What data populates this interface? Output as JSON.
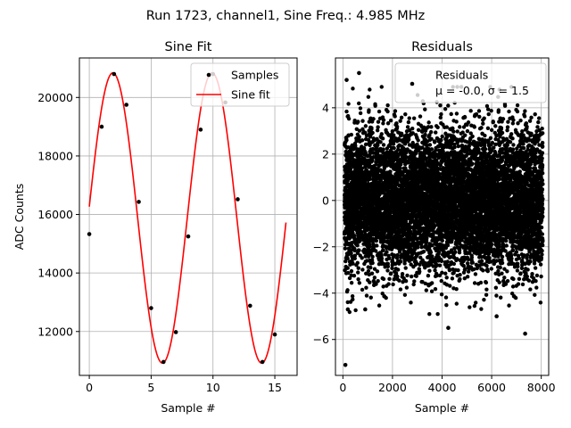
{
  "suptitle": "Run 1723, channel1, Sine Freq.: 4.985 MHz",
  "chart_data": [
    {
      "type": "scatter",
      "title": "Sine Fit",
      "xlabel": "Sample #",
      "ylabel": "ADC Counts",
      "xlim": [
        -0.8,
        16.8
      ],
      "ylim": [
        10500,
        21350
      ],
      "xticks": [
        0,
        5,
        10,
        15
      ],
      "yticks": [
        12000,
        14000,
        16000,
        18000,
        20000
      ],
      "grid": true,
      "legend_position": "upper-right",
      "series": [
        {
          "name": "Samples",
          "kind": "points",
          "color": "#000000",
          "x": [
            0,
            1,
            2,
            3,
            4,
            5,
            6,
            7,
            8,
            9,
            10,
            11,
            12,
            13,
            14,
            15
          ],
          "y": [
            15330,
            19000,
            20800,
            19750,
            16430,
            12800,
            10960,
            11980,
            15250,
            18900,
            20800,
            19830,
            16520,
            12880,
            10960,
            11900
          ]
        },
        {
          "name": "Sine fit",
          "kind": "line",
          "color": "#ff0000",
          "model": {
            "offset": 15880,
            "amplitude": 4960,
            "period": 8.02,
            "phase": -0.1,
            "x_start": 0,
            "x_end": 15.9
          }
        }
      ]
    },
    {
      "type": "scatter",
      "title": "Residuals",
      "xlabel": "Sample #",
      "ylabel": "",
      "xlim": [
        -300,
        8300
      ],
      "ylim": [
        -7.55,
        6.15
      ],
      "xticks": [
        0,
        2000,
        4000,
        6000,
        8000
      ],
      "yticks": [
        -6,
        -4,
        -2,
        0,
        2,
        4
      ],
      "grid": true,
      "legend_position": "upper-right",
      "legend_lines": [
        "Residuals",
        "μ = -0.0, σ = 1.5"
      ],
      "series": [
        {
          "name": "Residuals",
          "kind": "points",
          "color": "#000000",
          "n_points": 8000,
          "mean": 0.0,
          "sigma": 1.5,
          "x_range": [
            0,
            8000
          ],
          "outliers": [
            {
              "x": 100,
              "y": -7.1
            },
            {
              "x": 150,
              "y": 5.2
            },
            {
              "x": 650,
              "y": 5.5
            },
            {
              "x": 4250,
              "y": -5.5
            },
            {
              "x": 7350,
              "y": -5.75
            },
            {
              "x": 6200,
              "y": -5.0
            },
            {
              "x": 200,
              "y": -4.7
            },
            {
              "x": 900,
              "y": -4.7
            }
          ]
        }
      ]
    }
  ]
}
